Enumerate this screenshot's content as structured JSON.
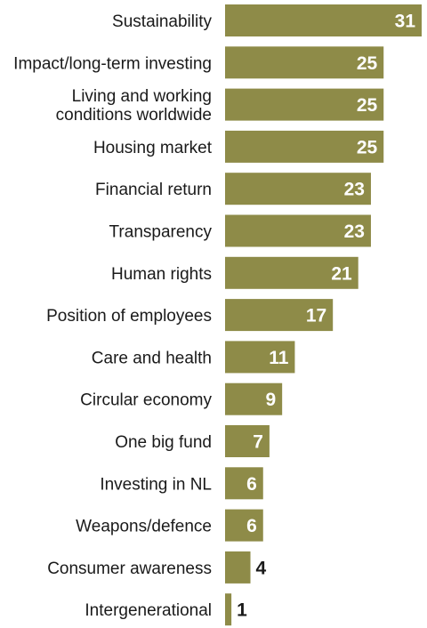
{
  "chart_data": {
    "type": "bar",
    "orientation": "horizontal",
    "title": "",
    "xlabel": "",
    "ylabel": "",
    "categories": [
      "Sustainability",
      "Impact/long-term investing",
      "Living and working conditions worldwide",
      "Housing market",
      "Financial return",
      "Transparency",
      "Human rights",
      "Position of employees",
      "Care and health",
      "Circular economy",
      "One big fund",
      "Investing in NL",
      "Weapons/defence",
      "Consumer awareness",
      "Intergenerational"
    ],
    "category_lines": [
      [
        "Sustainability"
      ],
      [
        "Impact/long-term investing"
      ],
      [
        "Living and working",
        "conditions worldwide"
      ],
      [
        "Housing market"
      ],
      [
        "Financial return"
      ],
      [
        "Transparency"
      ],
      [
        "Human rights"
      ],
      [
        "Position of employees"
      ],
      [
        "Care and health"
      ],
      [
        "Circular economy"
      ],
      [
        "One big fund"
      ],
      [
        "Investing in NL"
      ],
      [
        "Weapons/defence"
      ],
      [
        "Consumer awareness"
      ],
      [
        "Intergenerational"
      ]
    ],
    "values": [
      31,
      25,
      25,
      25,
      23,
      23,
      21,
      17,
      11,
      9,
      7,
      6,
      6,
      4,
      1
    ],
    "xlim": [
      0,
      31
    ],
    "grid": false,
    "legend": "none",
    "bar_color": "#8e8b48",
    "value_label_color_inside": "#ffffff",
    "value_label_color_outside": "#1a1a1a"
  }
}
